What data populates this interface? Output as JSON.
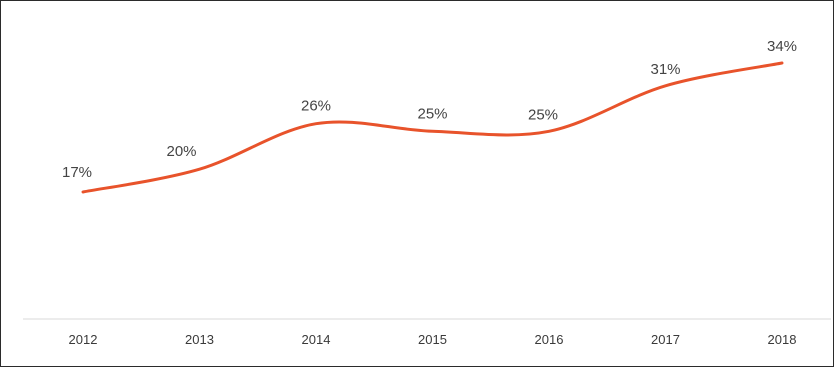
{
  "chart_data": {
    "type": "line",
    "x": [
      "2012",
      "2013",
      "2014",
      "2015",
      "2016",
      "2017",
      "2018"
    ],
    "values": [
      17,
      20,
      26,
      25,
      25,
      31,
      34
    ],
    "data_labels": [
      "17%",
      "20%",
      "26%",
      "25%",
      "25%",
      "31%",
      "34%"
    ],
    "title": "",
    "xlabel": "",
    "ylabel": "",
    "ylim": [
      0,
      40
    ],
    "grid": false,
    "legend": "none",
    "colors": {
      "line": "#e8532b",
      "axis": "#ececec"
    }
  }
}
